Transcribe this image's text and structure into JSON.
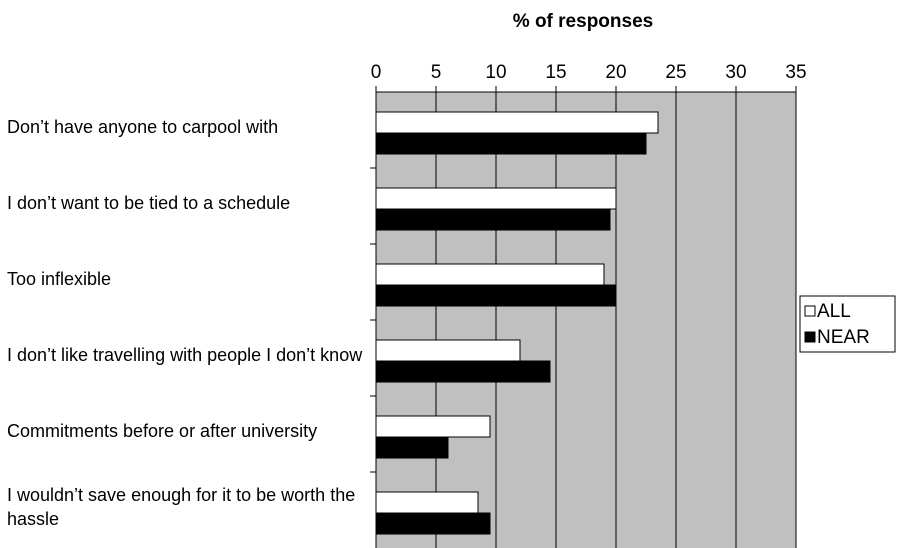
{
  "chart_data": {
    "type": "bar",
    "orientation": "horizontal",
    "x_label": "% of responses",
    "categories": [
      "Don’t have anyone to carpool with",
      "I don’t want to be tied to a schedule",
      "Too inflexible",
      "I don’t like travelling with people I don’t know",
      "Commitments before or after university",
      "I  wouldn’t save enough for it to be worth the hassle"
    ],
    "series": [
      {
        "name": "ALL",
        "color": "#ffffff",
        "values": [
          23.5,
          20,
          19,
          12,
          9.5,
          8.5
        ]
      },
      {
        "name": "NEAR",
        "color": "#000000",
        "values": [
          22.5,
          19.5,
          20,
          14.5,
          6,
          9.5
        ]
      }
    ],
    "xlim": [
      0,
      35
    ],
    "xticks": [
      0,
      5,
      10,
      15,
      20,
      25,
      30,
      35
    ],
    "grid": true,
    "legend": "right",
    "plot_background": "#c0c0c0"
  }
}
